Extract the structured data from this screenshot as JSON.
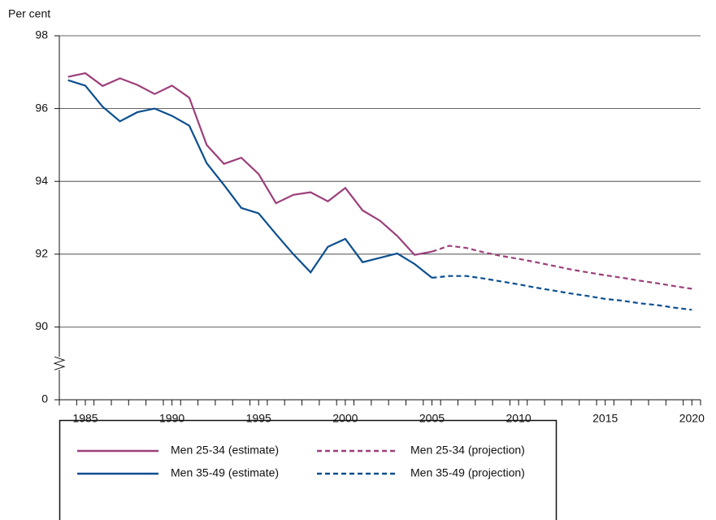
{
  "chart_data": {
    "type": "line",
    "y_axis_label": "Per cent",
    "x": [
      1984,
      1985,
      1986,
      1987,
      1988,
      1989,
      1990,
      1991,
      1992,
      1993,
      1994,
      1995,
      1996,
      1997,
      1998,
      1999,
      2000,
      2001,
      2002,
      2003,
      2004,
      2005,
      2006,
      2007,
      2008,
      2009,
      2010,
      2011,
      2012,
      2013,
      2014,
      2015,
      2016,
      2017,
      2018,
      2019,
      2020
    ],
    "series": [
      {
        "name": "Men 25-34 (estimate)",
        "color": "#9c3f7a",
        "dashed": false,
        "values": [
          96.87,
          96.97,
          96.62,
          96.83,
          96.65,
          96.4,
          96.63,
          96.3,
          95.0,
          94.48,
          94.65,
          94.2,
          93.4,
          93.63,
          93.7,
          93.45,
          93.82,
          93.2,
          92.92,
          92.5,
          91.98,
          92.07,
          null,
          null,
          null,
          null,
          null,
          null,
          null,
          null,
          null,
          null,
          null,
          null,
          null,
          null,
          null
        ]
      },
      {
        "name": "Men 35-49 (estimate)",
        "color": "#0b4f8f",
        "dashed": false,
        "values": [
          96.78,
          96.63,
          96.05,
          95.65,
          95.9,
          96.0,
          95.8,
          95.53,
          94.5,
          93.9,
          93.27,
          93.12,
          92.55,
          92.0,
          91.5,
          92.2,
          92.42,
          91.78,
          91.9,
          92.02,
          91.73,
          91.35,
          null,
          null,
          null,
          null,
          null,
          null,
          null,
          null,
          null,
          null,
          null,
          null,
          null,
          null,
          null
        ]
      },
      {
        "name": "Men 25-34 (projection)",
        "color": "#9c3f7a",
        "dashed": true,
        "values": [
          null,
          null,
          null,
          null,
          null,
          null,
          null,
          null,
          null,
          null,
          null,
          null,
          null,
          null,
          null,
          null,
          null,
          null,
          null,
          null,
          null,
          92.07,
          92.23,
          92.17,
          92.05,
          91.95,
          91.87,
          91.78,
          91.68,
          91.58,
          91.5,
          91.42,
          91.35,
          91.27,
          91.2,
          91.12,
          91.05
        ]
      },
      {
        "name": "Men 35-49 (projection)",
        "color": "#0b4f8f",
        "dashed": true,
        "values": [
          null,
          null,
          null,
          null,
          null,
          null,
          null,
          null,
          null,
          null,
          null,
          null,
          null,
          null,
          null,
          null,
          null,
          null,
          null,
          null,
          null,
          91.35,
          91.4,
          91.4,
          91.33,
          91.25,
          91.17,
          91.08,
          91.0,
          90.92,
          90.85,
          90.77,
          90.72,
          90.65,
          90.6,
          90.53,
          90.47
        ]
      }
    ],
    "xlim": [
      1983.5,
      2020.5
    ],
    "xticks": [
      1985,
      1990,
      1995,
      2000,
      2005,
      2010,
      2015,
      2020
    ],
    "ylim": [
      0,
      98
    ],
    "yticks": [
      0,
      90,
      92,
      94,
      96,
      98
    ],
    "axis_break": true,
    "grid": true
  }
}
